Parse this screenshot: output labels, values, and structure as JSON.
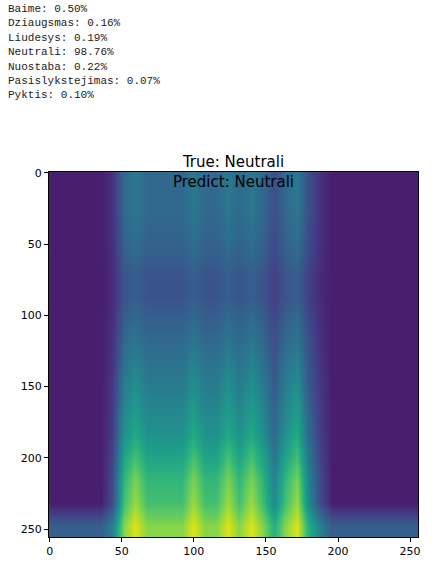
{
  "chart_data": {
    "type": "heatmap",
    "title": "True: Neutrali\nPredict: Neutrali",
    "annotations": [
      "Baime: 0.50%",
      "Dziaugsmas: 0.16%",
      "Liudesys: 0.19%",
      "Neutrali: 98.76%",
      "Nuostaba: 0.22%",
      "Pasislykstejimas: 0.07%",
      "Pyktis: 0.10%"
    ],
    "color": "Viridis",
    "x": [
      3.5,
      11.5,
      19.5,
      27.5,
      35.5,
      43.5,
      51.5,
      59.5,
      67.5,
      75.5,
      83.5,
      91.5,
      99.5,
      107.5,
      115.5,
      123.5,
      131.5,
      139.5,
      147.5,
      155.5,
      163.5,
      171.5,
      179.5,
      187.5,
      195.5,
      203.5,
      211.5,
      219.5,
      227.5,
      235.5,
      243.5,
      251.5
    ],
    "y": [
      7.5,
      23.5,
      39.5,
      55.5,
      71.5,
      87.5,
      103.5,
      119.5,
      135.5,
      151.5,
      167.5,
      183.5,
      199.5,
      215.5,
      231.5,
      247.5
    ],
    "cells": [
      [
        0.08,
        0.08,
        0.08,
        0.08,
        0.08,
        0.14,
        0.34,
        0.4,
        0.34,
        0.34,
        0.34,
        0.34,
        0.4,
        0.34,
        0.34,
        0.4,
        0.34,
        0.4,
        0.34,
        0.24,
        0.34,
        0.4,
        0.24,
        0.14,
        0.08,
        0.08,
        0.08,
        0.08,
        0.08,
        0.08,
        0.08,
        0.08
      ],
      [
        0.08,
        0.08,
        0.08,
        0.08,
        0.08,
        0.14,
        0.34,
        0.4,
        0.34,
        0.34,
        0.34,
        0.34,
        0.4,
        0.34,
        0.34,
        0.4,
        0.34,
        0.4,
        0.34,
        0.24,
        0.34,
        0.4,
        0.24,
        0.14,
        0.08,
        0.08,
        0.08,
        0.08,
        0.08,
        0.08,
        0.08,
        0.08
      ],
      [
        0.08,
        0.08,
        0.08,
        0.08,
        0.08,
        0.14,
        0.32,
        0.38,
        0.32,
        0.32,
        0.32,
        0.32,
        0.38,
        0.32,
        0.32,
        0.38,
        0.32,
        0.38,
        0.32,
        0.23,
        0.32,
        0.38,
        0.23,
        0.14,
        0.08,
        0.08,
        0.08,
        0.08,
        0.08,
        0.08,
        0.08,
        0.08
      ],
      [
        0.08,
        0.08,
        0.08,
        0.08,
        0.08,
        0.13,
        0.3,
        0.35,
        0.3,
        0.3,
        0.3,
        0.3,
        0.35,
        0.3,
        0.3,
        0.35,
        0.3,
        0.35,
        0.3,
        0.22,
        0.3,
        0.35,
        0.22,
        0.13,
        0.08,
        0.08,
        0.08,
        0.08,
        0.08,
        0.08,
        0.08,
        0.08
      ],
      [
        0.08,
        0.08,
        0.08,
        0.08,
        0.08,
        0.12,
        0.26,
        0.3,
        0.26,
        0.26,
        0.26,
        0.26,
        0.3,
        0.26,
        0.26,
        0.3,
        0.26,
        0.3,
        0.26,
        0.19,
        0.26,
        0.3,
        0.19,
        0.12,
        0.08,
        0.08,
        0.08,
        0.08,
        0.08,
        0.08,
        0.08,
        0.08
      ],
      [
        0.08,
        0.08,
        0.08,
        0.08,
        0.08,
        0.12,
        0.26,
        0.3,
        0.26,
        0.26,
        0.26,
        0.26,
        0.3,
        0.26,
        0.26,
        0.3,
        0.26,
        0.3,
        0.26,
        0.19,
        0.26,
        0.3,
        0.19,
        0.12,
        0.08,
        0.08,
        0.08,
        0.08,
        0.08,
        0.08,
        0.08,
        0.08
      ],
      [
        0.08,
        0.08,
        0.08,
        0.08,
        0.08,
        0.13,
        0.3,
        0.35,
        0.3,
        0.3,
        0.3,
        0.3,
        0.35,
        0.3,
        0.3,
        0.35,
        0.3,
        0.35,
        0.3,
        0.22,
        0.3,
        0.35,
        0.22,
        0.13,
        0.08,
        0.08,
        0.08,
        0.08,
        0.08,
        0.08,
        0.08,
        0.08
      ],
      [
        0.08,
        0.08,
        0.08,
        0.08,
        0.08,
        0.14,
        0.34,
        0.4,
        0.34,
        0.34,
        0.34,
        0.34,
        0.4,
        0.34,
        0.34,
        0.4,
        0.34,
        0.4,
        0.34,
        0.24,
        0.34,
        0.4,
        0.24,
        0.14,
        0.08,
        0.08,
        0.08,
        0.08,
        0.08,
        0.08,
        0.08,
        0.08
      ],
      [
        0.08,
        0.08,
        0.08,
        0.08,
        0.08,
        0.15,
        0.38,
        0.45,
        0.38,
        0.38,
        0.38,
        0.38,
        0.45,
        0.38,
        0.38,
        0.45,
        0.38,
        0.45,
        0.38,
        0.26,
        0.38,
        0.45,
        0.26,
        0.15,
        0.08,
        0.08,
        0.08,
        0.08,
        0.08,
        0.08,
        0.08,
        0.08
      ],
      [
        0.08,
        0.08,
        0.08,
        0.08,
        0.08,
        0.16,
        0.42,
        0.5,
        0.42,
        0.42,
        0.42,
        0.42,
        0.5,
        0.42,
        0.42,
        0.5,
        0.42,
        0.5,
        0.42,
        0.29,
        0.42,
        0.5,
        0.29,
        0.16,
        0.08,
        0.08,
        0.08,
        0.08,
        0.08,
        0.08,
        0.08,
        0.08
      ],
      [
        0.08,
        0.08,
        0.08,
        0.08,
        0.08,
        0.17,
        0.46,
        0.55,
        0.46,
        0.46,
        0.46,
        0.46,
        0.55,
        0.46,
        0.46,
        0.55,
        0.46,
        0.55,
        0.46,
        0.32,
        0.46,
        0.55,
        0.32,
        0.17,
        0.08,
        0.08,
        0.08,
        0.08,
        0.08,
        0.08,
        0.08,
        0.08
      ],
      [
        0.08,
        0.08,
        0.08,
        0.08,
        0.08,
        0.18,
        0.5,
        0.6,
        0.5,
        0.5,
        0.5,
        0.5,
        0.6,
        0.5,
        0.5,
        0.6,
        0.5,
        0.6,
        0.5,
        0.34,
        0.5,
        0.6,
        0.34,
        0.18,
        0.08,
        0.08,
        0.08,
        0.08,
        0.08,
        0.08,
        0.08,
        0.08
      ],
      [
        0.08,
        0.08,
        0.08,
        0.08,
        0.08,
        0.2,
        0.58,
        0.7,
        0.58,
        0.58,
        0.58,
        0.58,
        0.7,
        0.58,
        0.58,
        0.7,
        0.58,
        0.7,
        0.58,
        0.39,
        0.58,
        0.7,
        0.39,
        0.2,
        0.08,
        0.08,
        0.08,
        0.08,
        0.08,
        0.08,
        0.08,
        0.08
      ],
      [
        0.08,
        0.08,
        0.08,
        0.08,
        0.08,
        0.22,
        0.66,
        0.8,
        0.66,
        0.66,
        0.66,
        0.66,
        0.8,
        0.66,
        0.66,
        0.8,
        0.66,
        0.8,
        0.66,
        0.44,
        0.66,
        0.8,
        0.44,
        0.22,
        0.08,
        0.08,
        0.08,
        0.08,
        0.08,
        0.08,
        0.08,
        0.08
      ],
      [
        0.08,
        0.08,
        0.08,
        0.08,
        0.08,
        0.23,
        0.7,
        0.85,
        0.7,
        0.7,
        0.7,
        0.7,
        0.85,
        0.7,
        0.7,
        0.85,
        0.7,
        0.85,
        0.7,
        0.47,
        0.7,
        0.85,
        0.47,
        0.23,
        0.08,
        0.08,
        0.08,
        0.08,
        0.08,
        0.08,
        0.08,
        0.08
      ],
      [
        0.3,
        0.3,
        0.3,
        0.3,
        0.3,
        0.43,
        0.82,
        0.95,
        0.82,
        0.82,
        0.82,
        0.82,
        0.95,
        0.82,
        0.82,
        0.95,
        0.82,
        0.95,
        0.82,
        0.63,
        0.82,
        0.95,
        0.63,
        0.43,
        0.3,
        0.3,
        0.3,
        0.3,
        0.3,
        0.3,
        0.3,
        0.3
      ]
    ],
    "zlim": [
      0,
      1
    ],
    "xlim": [
      -0.5,
      255.5
    ],
    "ylim": [
      255.5,
      -0.5
    ],
    "xticks": [
      0,
      50,
      100,
      150,
      200,
      250
    ],
    "yticks": [
      0,
      50,
      100,
      150,
      200,
      250
    ],
    "grid": false
  }
}
